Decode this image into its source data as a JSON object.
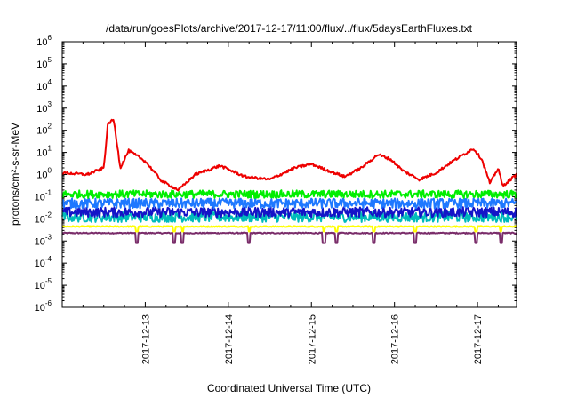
{
  "chart_data": {
    "type": "line",
    "title": "/data/run/goesPlots/archive/2017-12-17/11:00/flux/../flux/5daysEarthFluxes.txt",
    "xlabel": "Coordinated Universal Time (UTC)",
    "ylabel": "protons/cm²-s-sr-MeV",
    "yscale": "log",
    "ylim": [
      1e-06,
      1000000.0
    ],
    "xlim_days": [
      0,
      5.47
    ],
    "x_unit": "days since 2017-12-12 00:00 UTC",
    "yticks": [
      {
        "base": "10",
        "exp": "-6",
        "value": 1e-06
      },
      {
        "base": "10",
        "exp": "-5",
        "value": 1e-05
      },
      {
        "base": "10",
        "exp": "-4",
        "value": 0.0001
      },
      {
        "base": "10",
        "exp": "-3",
        "value": 0.001
      },
      {
        "base": "10",
        "exp": "-2",
        "value": 0.01
      },
      {
        "base": "10",
        "exp": "-1",
        "value": 0.1
      },
      {
        "base": "10",
        "exp": "0",
        "value": 1
      },
      {
        "base": "10",
        "exp": "1",
        "value": 10
      },
      {
        "base": "10",
        "exp": "2",
        "value": 100
      },
      {
        "base": "10",
        "exp": "3",
        "value": 1000
      },
      {
        "base": "10",
        "exp": "4",
        "value": 10000
      },
      {
        "base": "10",
        "exp": "5",
        "value": 100000
      },
      {
        "base": "10",
        "exp": "6",
        "value": 1000000
      }
    ],
    "xticks": [
      {
        "label": "2017-12-13",
        "day": 1
      },
      {
        "label": "2017-12-14",
        "day": 2
      },
      {
        "label": "2017-12-15",
        "day": 3
      },
      {
        "label": "2017-12-16",
        "day": 4
      },
      {
        "label": "2017-12-17",
        "day": 5
      }
    ],
    "grid": false,
    "legend": "none",
    "series": [
      {
        "color": "#ee0000",
        "noise": 0.12,
        "x": [
          0.0,
          0.3,
          0.5,
          0.55,
          0.62,
          0.7,
          0.75,
          0.8,
          1.0,
          1.2,
          1.4,
          1.6,
          1.9,
          2.2,
          2.5,
          2.8,
          3.0,
          3.2,
          3.4,
          3.6,
          3.8,
          3.95,
          4.1,
          4.3,
          4.5,
          4.7,
          4.95,
          5.05,
          5.15,
          5.25,
          5.3,
          5.47
        ],
        "y": [
          1.2,
          1.0,
          2.0,
          200,
          300,
          2.0,
          5.0,
          12,
          4.0,
          0.5,
          0.2,
          1.0,
          2.5,
          0.8,
          0.6,
          2.0,
          3.0,
          1.5,
          0.8,
          2.0,
          8.0,
          5.0,
          1.5,
          0.6,
          1.2,
          4.0,
          15,
          5.0,
          0.4,
          2.0,
          0.3,
          1.0
        ]
      },
      {
        "color": "#00ee00",
        "base": 0.13,
        "noise": 0.35,
        "dips": "none"
      },
      {
        "color": "#1e78ff",
        "base": 0.05,
        "noise": 0.45,
        "dips": "none"
      },
      {
        "color": "#00bbbb",
        "base": 0.012,
        "noise": 0.45,
        "dips": "none"
      },
      {
        "color": "#1414c8",
        "base": 0.02,
        "noise": 0.45,
        "dips": "none"
      },
      {
        "color": "#ffff00",
        "base": 0.0045,
        "noise": 0.05,
        "dips": "small"
      },
      {
        "color": "#7a2d6a",
        "base": 0.0023,
        "noise": 0.05,
        "dips": "deep"
      }
    ]
  }
}
